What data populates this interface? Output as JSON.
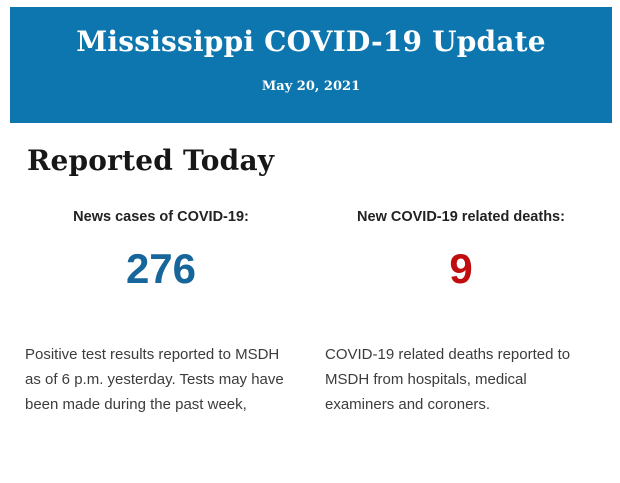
{
  "header": {
    "title": "Mississippi COVID-19 Update",
    "date": "May 20, 2021",
    "background_color": "#0d76ae",
    "text_color": "#fdfefe"
  },
  "section": {
    "heading": "Reported Today"
  },
  "stats": [
    {
      "label": "News cases of COVID-19:",
      "value": "276",
      "value_color": "#17669b",
      "description": "Positive test results reported to MSDH as of 6 p.m. yesterday. Tests may have been made during the past week,"
    },
    {
      "label": "New COVID-19 related deaths:",
      "value": "9",
      "value_color": "#c00d0d",
      "description": "COVID-19 related deaths reported to MSDH from hospitals, medical examiners and coroners."
    }
  ]
}
